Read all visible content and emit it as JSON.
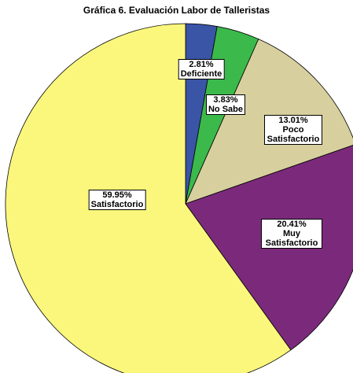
{
  "chart_data": {
    "type": "pie",
    "title": "Gráfica 6. Evaluación Labor de Talleristas",
    "categories": [
      "Deficiente",
      "No Sabe",
      "Poco Satisfactorio",
      "Muy Satisfactorio",
      "Satisfactorio"
    ],
    "values": [
      2.81,
      3.83,
      13.01,
      20.41,
      59.95
    ],
    "value_labels": [
      "2.81%",
      "3.83%",
      "13.01%",
      "20.41%",
      "59.95%"
    ],
    "colors": [
      "#3a54a6",
      "#3cb94b",
      "#d7d09e",
      "#7b2a7b",
      "#fbf77d"
    ]
  }
}
